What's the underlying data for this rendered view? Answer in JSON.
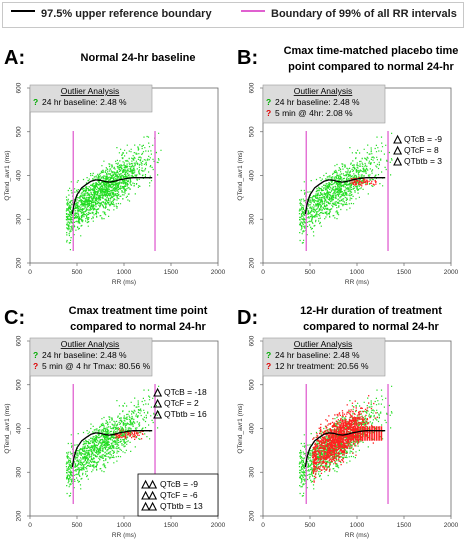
{
  "legend": {
    "items": [
      {
        "label": "97.5% upper reference boundary",
        "color": "#000000"
      },
      {
        "label": "Boundary of 99% of all RR intervals",
        "color": "#e060d0"
      }
    ]
  },
  "colors": {
    "baseline_points": "#22dd22",
    "treatment_points": "#ff2020",
    "boundary_line": "#000000",
    "rr_boundary": "#e060d0",
    "box_fill": "#dcdcdc",
    "q_green": "#00aa00",
    "q_red": "#dd0000"
  },
  "chart_data": [
    {
      "type": "scatter",
      "panel_letter": "A:",
      "heading": [
        "Normal 24-hr baseline"
      ],
      "xlabel": "RR (ms)",
      "ylabel": "QTend_avr1 (ms)",
      "xlim": [
        0,
        2000
      ],
      "ylim": [
        200,
        600
      ],
      "xticks": [
        0,
        500,
        1000,
        1500,
        2000
      ],
      "yticks": [
        200,
        300,
        400,
        500,
        600
      ],
      "rr_boundaries": [
        460,
        1330
      ],
      "boundary_curve": {
        "x": [
          450,
          470,
          500,
          550,
          600,
          650,
          700,
          750,
          800,
          850,
          900,
          950,
          1000,
          1050,
          1100,
          1150,
          1200,
          1250,
          1300
        ],
        "y": [
          312,
          336,
          356,
          372,
          380,
          387,
          390,
          389,
          386,
          385,
          387,
          390,
          392,
          394,
          395,
          395,
          395,
          395,
          395
        ]
      },
      "outlier_box": {
        "title": "Outlier Analysis",
        "lines": [
          {
            "mark": "?",
            "text": "24 hr baseline: 2.48 %",
            "kind": "baseline"
          }
        ]
      },
      "qt_changes": [],
      "qt_changes_2": [],
      "treatment": {
        "kind": "none"
      }
    },
    {
      "type": "scatter",
      "panel_letter": "B:",
      "heading": [
        "Cmax time-matched placebo time",
        "point  compared to normal 24-hr"
      ],
      "xlabel": "RR (ms)",
      "ylabel": "QTend_avr1 (ms)",
      "xlim": [
        0,
        2000
      ],
      "ylim": [
        200,
        600
      ],
      "xticks": [
        0,
        500,
        1000,
        1500,
        2000
      ],
      "yticks": [
        200,
        300,
        400,
        500,
        600
      ],
      "rr_boundaries": [
        460,
        1330
      ],
      "boundary_curve": {
        "x": [
          450,
          470,
          500,
          550,
          600,
          650,
          700,
          750,
          800,
          850,
          900,
          950,
          1000,
          1050,
          1100,
          1150,
          1200,
          1250,
          1300
        ],
        "y": [
          312,
          336,
          356,
          372,
          380,
          387,
          390,
          389,
          386,
          385,
          387,
          390,
          392,
          394,
          395,
          395,
          395,
          395,
          395
        ]
      },
      "outlier_box": {
        "title": "Outlier Analysis",
        "lines": [
          {
            "mark": "?",
            "text": "24 hr baseline: 2.48 %",
            "kind": "baseline"
          },
          {
            "mark": "?",
            "text": "5 min @ 4hr: 2.08 %",
            "kind": "treatment"
          }
        ]
      },
      "qt_changes": [
        "QTcB = -9",
        "QTcF = 8",
        "QTbtb = 3"
      ],
      "qt_changes_2": [],
      "treatment": {
        "kind": "small"
      }
    },
    {
      "type": "scatter",
      "panel_letter": "C:",
      "heading": [
        "Cmax treatment time point",
        "compared to normal 24-hr"
      ],
      "xlabel": "RR (ms)",
      "ylabel": "QTend_avr1 (ms)",
      "xlim": [
        0,
        2000
      ],
      "ylim": [
        200,
        600
      ],
      "xticks": [
        0,
        500,
        1000,
        1500,
        2000
      ],
      "yticks": [
        200,
        300,
        400,
        500,
        600
      ],
      "rr_boundaries": [
        460,
        1330
      ],
      "boundary_curve": {
        "x": [
          450,
          470,
          500,
          550,
          600,
          650,
          700,
          750,
          800,
          850,
          900,
          950,
          1000,
          1050,
          1100,
          1150,
          1200,
          1250,
          1300
        ],
        "y": [
          312,
          336,
          356,
          372,
          380,
          387,
          390,
          389,
          386,
          385,
          387,
          390,
          392,
          394,
          395,
          395,
          395,
          395,
          395
        ]
      },
      "outlier_box": {
        "title": "Outlier Analysis",
        "lines": [
          {
            "mark": "?",
            "text": "24 hr baseline: 2.48 %",
            "kind": "baseline"
          },
          {
            "mark": "?",
            "text": "5 min @ 4 hr Tmax: 80.56 %",
            "kind": "treatment"
          }
        ]
      },
      "qt_changes": [
        "QTcB = -18",
        "QTcF = 2",
        "QTbtb = 16"
      ],
      "qt_changes_2": [
        "QTcB = -9",
        "QTcF = -6",
        "QTbtb = 13"
      ],
      "treatment": {
        "kind": "small"
      }
    },
    {
      "type": "scatter",
      "panel_letter": "D:",
      "heading": [
        "12-Hr duration of treatment",
        "compared to normal 24-hr"
      ],
      "xlabel": "RR (ms)",
      "ylabel": "QTend_avr1 (ms)",
      "xlim": [
        0,
        2000
      ],
      "ylim": [
        200,
        600
      ],
      "xticks": [
        0,
        500,
        1000,
        1500,
        2000
      ],
      "yticks": [
        200,
        300,
        400,
        500,
        600
      ],
      "rr_boundaries": [
        460,
        1330
      ],
      "boundary_curve": {
        "x": [
          450,
          470,
          500,
          550,
          600,
          650,
          700,
          750,
          800,
          850,
          900,
          950,
          1000,
          1050,
          1100,
          1150,
          1200,
          1250,
          1300
        ],
        "y": [
          312,
          336,
          356,
          372,
          380,
          387,
          390,
          389,
          386,
          385,
          387,
          390,
          392,
          394,
          395,
          395,
          395,
          395,
          395
        ]
      },
      "outlier_box": {
        "title": "Outlier Analysis",
        "lines": [
          {
            "mark": "?",
            "text": "24 hr baseline: 2.48 %",
            "kind": "baseline"
          },
          {
            "mark": "?",
            "text": "12 hr treatment: 20.56 %",
            "kind": "treatment"
          }
        ]
      },
      "qt_changes": [],
      "qt_changes_2": [],
      "treatment": {
        "kind": "large"
      }
    }
  ]
}
